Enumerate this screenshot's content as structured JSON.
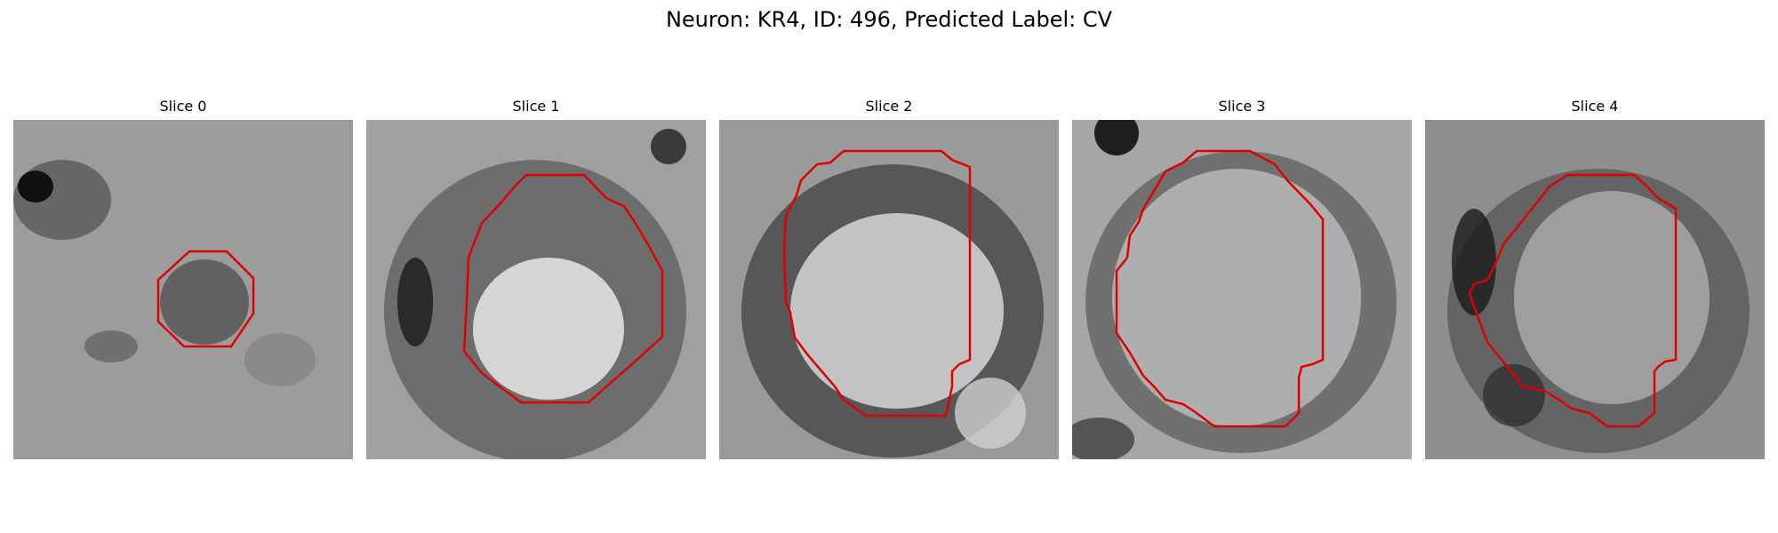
{
  "figure": {
    "title": "Neuron: KR4, ID: 496, Predicted Label: CV",
    "contour_color": "#e00000"
  },
  "panels": [
    {
      "title": "Slice 0",
      "image": "grayscale-microscopy-slice",
      "contour": "red-outline"
    },
    {
      "title": "Slice 1",
      "image": "grayscale-microscopy-slice",
      "contour": "red-outline"
    },
    {
      "title": "Slice 2",
      "image": "grayscale-microscopy-slice",
      "contour": "red-outline"
    },
    {
      "title": "Slice 3",
      "image": "grayscale-microscopy-slice",
      "contour": "red-outline"
    },
    {
      "title": "Slice 4",
      "image": "grayscale-microscopy-slice",
      "contour": "red-outline"
    }
  ]
}
